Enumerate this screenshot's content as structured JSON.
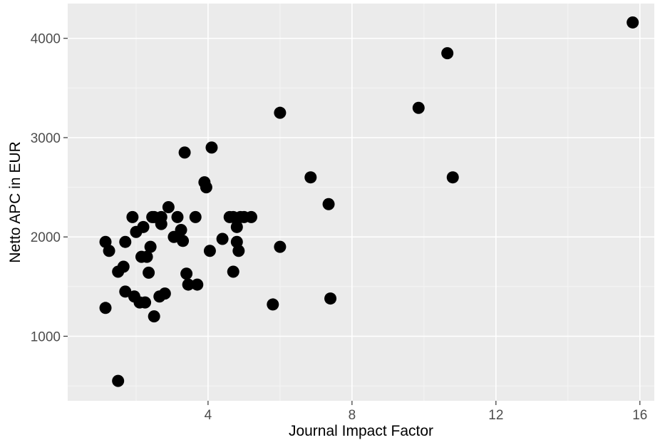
{
  "chart_data": {
    "type": "scatter",
    "title": "",
    "xlabel": "Journal Impact Factor",
    "ylabel": "Netto APC in EUR",
    "xlim": [
      0.1,
      16.4
    ],
    "ylim": [
      350,
      4350
    ],
    "x_ticks": [
      4,
      8,
      12,
      16
    ],
    "x_tick_labels": [
      "4",
      "8",
      "12",
      "16"
    ],
    "y_ticks": [
      1000,
      2000,
      3000,
      4000
    ],
    "y_tick_labels": [
      "1000",
      "2000",
      "3000",
      "4000"
    ],
    "grid": true,
    "legend": "none",
    "colors": {
      "panel_background": "#ebebeb",
      "grid_major": "#ffffff",
      "grid_minor": "#f5f5f5",
      "point": "#000000"
    },
    "x": [
      1.15,
      1.25,
      1.15,
      1.5,
      1.5,
      1.65,
      1.7,
      1.7,
      1.9,
      1.95,
      2.0,
      2.1,
      2.15,
      2.2,
      2.25,
      2.3,
      2.35,
      2.4,
      2.45,
      2.5,
      2.5,
      2.65,
      2.7,
      2.7,
      2.8,
      2.9,
      3.05,
      3.15,
      3.25,
      3.3,
      3.35,
      3.4,
      3.45,
      3.65,
      3.7,
      3.9,
      3.95,
      4.05,
      4.1,
      4.4,
      4.6,
      4.7,
      4.7,
      4.8,
      4.8,
      4.85,
      4.9,
      5.0,
      5.2,
      5.8,
      6.0,
      6.0,
      6.85,
      7.35,
      7.4,
      9.85,
      10.65,
      10.8,
      15.8
    ],
    "y": [
      1950,
      1860,
      1285,
      1650,
      550,
      1700,
      1950,
      1450,
      2200,
      1400,
      2050,
      1340,
      1800,
      2100,
      1340,
      1800,
      1640,
      1900,
      2200,
      2200,
      1200,
      1400,
      2200,
      2130,
      1430,
      2300,
      2000,
      2200,
      2070,
      1960,
      2850,
      1630,
      1520,
      2200,
      1520,
      2550,
      2500,
      1860,
      2900,
      1980,
      2200,
      1650,
      2200,
      1950,
      2100,
      1860,
      2200,
      2200,
      2200,
      1320,
      3250,
      1900,
      2600,
      2330,
      1380,
      3300,
      3850,
      2600,
      4160
    ]
  }
}
